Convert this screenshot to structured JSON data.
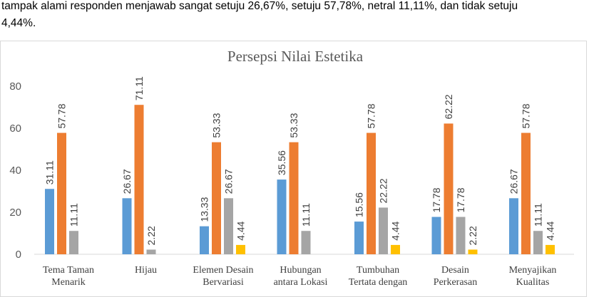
{
  "paragraph": {
    "line1": "tampak alami responden menjawab sangat setuju 26,67%, setuju 57,78%, netral 11,11%, dan tidak setuju",
    "line2": "4,44%."
  },
  "chart_data": {
    "type": "bar",
    "title": "Persepsi Nilai Estetika",
    "ylim": [
      0,
      80
    ],
    "yticks": [
      0,
      20,
      40,
      60,
      80
    ],
    "grid": false,
    "categories": [
      [
        "Tema Taman",
        "Menarik"
      ],
      [
        "Hijau"
      ],
      [
        "Elemen Desain",
        "Bervariasi"
      ],
      [
        "Hubungan",
        "antara Lokasi"
      ],
      [
        "Tumbuhan",
        "Tertata dengan"
      ],
      [
        "Desain",
        "Perkerasan"
      ],
      [
        "Menyajikan",
        "Kualitas"
      ]
    ],
    "series": [
      {
        "color": "#5b9bd5",
        "values": [
          31.11,
          26.67,
          13.33,
          35.56,
          15.56,
          17.78,
          26.67
        ]
      },
      {
        "color": "#ed7d31",
        "values": [
          57.78,
          71.11,
          53.33,
          53.33,
          57.78,
          62.22,
          57.78
        ]
      },
      {
        "color": "#a5a5a5",
        "values": [
          11.11,
          2.22,
          26.67,
          11.11,
          22.22,
          17.78,
          11.11
        ]
      },
      {
        "color": "#ffc000",
        "values": [
          null,
          null,
          4.44,
          null,
          4.44,
          2.22,
          4.44
        ]
      }
    ]
  }
}
